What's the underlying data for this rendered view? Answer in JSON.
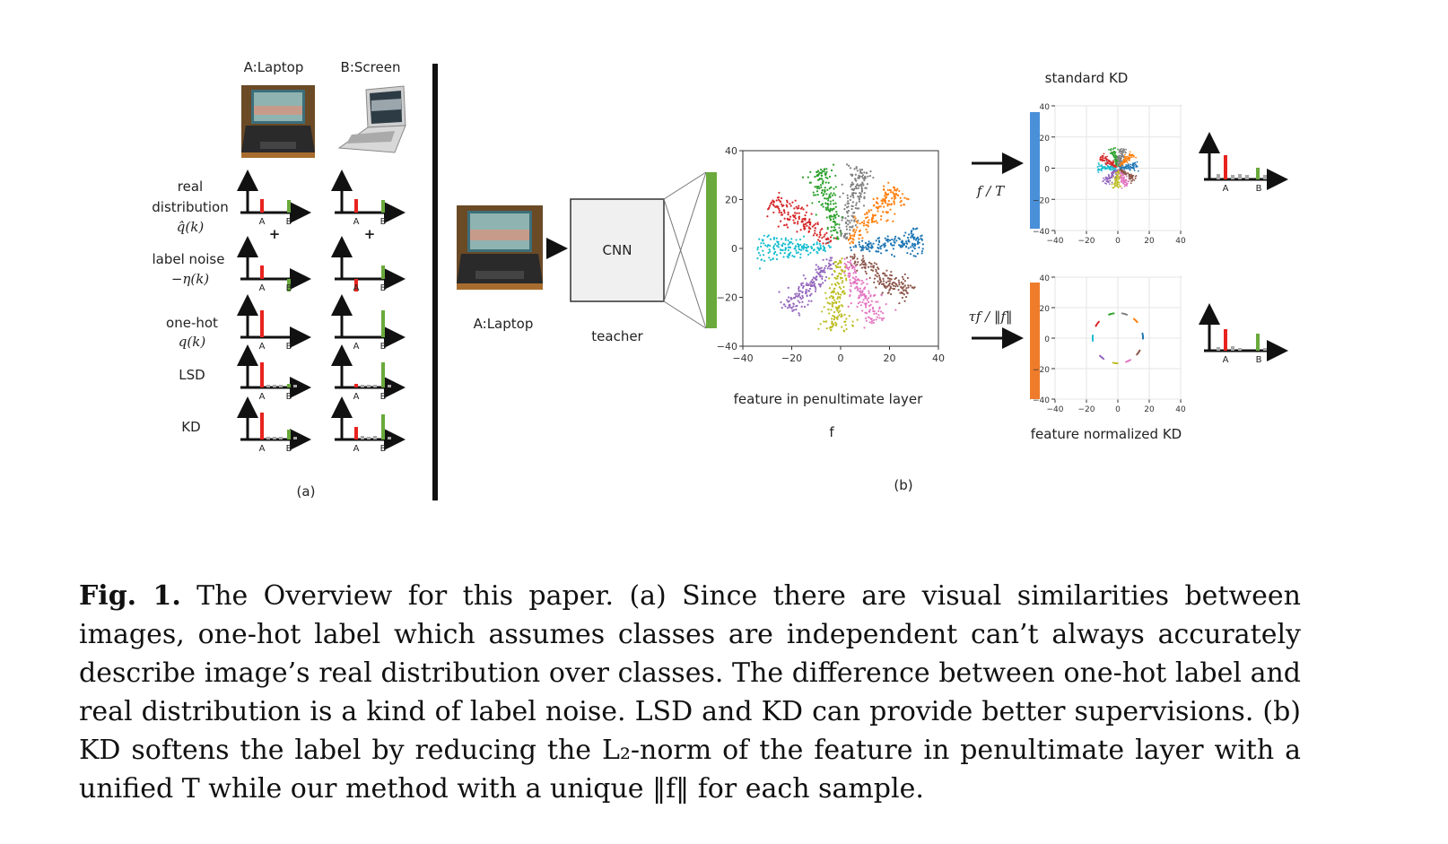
{
  "panel_a": {
    "col_a": "A:Laptop",
    "col_b": "B:Screen",
    "rows": [
      "real",
      "distribution",
      "q̂(k)",
      "label noise",
      "−η(k)",
      "one-hot",
      "q(k)",
      "LSD",
      "KD"
    ],
    "tick_a": "A",
    "tick_b": "B",
    "plus": "+",
    "caption": "(a)"
  },
  "panel_b": {
    "input_label": "A:Laptop",
    "cnn_label": "CNN",
    "teacher_label": "teacher",
    "feature_title": "feature in penultimate layer",
    "feature_symbol": "f",
    "standard_title": "standard KD",
    "normalized_title": "feature normalized KD",
    "op_standard": "f / T",
    "op_normalized": "τf / ‖f‖",
    "caption": "(b)",
    "bar_colors": {
      "green": "#6aaa3c",
      "blue": "#4a90d9",
      "orange": "#ef7c2a",
      "red": "#e8231e",
      "gray": "#a8a8a8"
    }
  },
  "chart_data": [
    {
      "type": "scatter",
      "panel": "feature in penultimate layer",
      "xlim": [
        -40,
        40
      ],
      "ylim": [
        -40,
        40
      ],
      "xticks": [
        "−40",
        "−20",
        "0",
        "20",
        "40"
      ],
      "yticks": [
        "40",
        "20",
        "0",
        "−20",
        "−40"
      ],
      "clusters": [
        {
          "color": "#2ca02c",
          "angle": 105
        },
        {
          "color": "#7f7f7f",
          "angle": 75
        },
        {
          "color": "#ff7f0e",
          "angle": 45
        },
        {
          "color": "#1f77b4",
          "angle": 5
        },
        {
          "color": "#8c564b",
          "angle": -35
        },
        {
          "color": "#e377c2",
          "angle": -65
        },
        {
          "color": "#bcbd22",
          "angle": -95
        },
        {
          "color": "#9467bd",
          "angle": -130
        },
        {
          "color": "#17becf",
          "angle": 180
        },
        {
          "color": "#d62728",
          "angle": 145
        }
      ]
    },
    {
      "type": "scatter",
      "panel": "standard KD",
      "xlim": [
        -40,
        40
      ],
      "ylim": [
        -40,
        40
      ],
      "xticks": [
        "−40",
        "−20",
        "0",
        "20",
        "40"
      ],
      "yticks": [
        "40",
        "20",
        "0",
        "−20",
        "−40"
      ]
    },
    {
      "type": "scatter",
      "panel": "feature normalized KD",
      "xlim": [
        -40,
        40
      ],
      "ylim": [
        -40,
        40
      ],
      "xticks": [
        "−40",
        "−20",
        "0",
        "20",
        "40"
      ],
      "yticks": [
        "40",
        "20",
        "0",
        "−20",
        "−40"
      ]
    }
  ],
  "caption": {
    "fig_label": "Fig. 1.",
    "text": " The Overview for this paper. (a) Since there are visual similarities between images, one-hot label which assumes classes are independent can’t always accurately describe image’s real distribution over classes. The difference between one-hot label and real distribution is a kind of label noise. LSD and KD can provide better supervisions. (b) KD softens the label by reducing the L₂-norm of the feature in penultimate layer with a unified T while our method with a unique ‖f‖ for each sample."
  }
}
